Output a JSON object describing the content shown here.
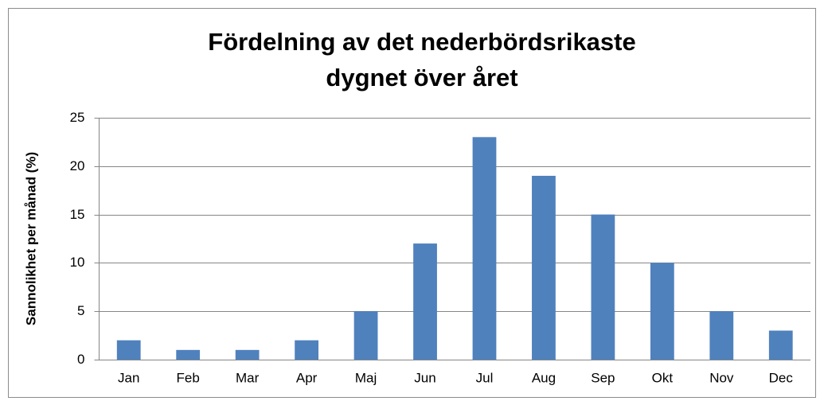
{
  "chart_data": {
    "type": "bar",
    "title": [
      "Fördelning av det nederbördsrikaste",
      "dygnet över året"
    ],
    "y_label": "Sannolikhet per månad (%)",
    "categories": [
      "Jan",
      "Feb",
      "Mar",
      "Apr",
      "Maj",
      "Jun",
      "Jul",
      "Aug",
      "Sep",
      "Okt",
      "Nov",
      "Dec"
    ],
    "values": [
      2,
      1,
      1,
      2,
      5,
      12,
      23,
      19,
      15,
      10,
      5,
      3
    ],
    "color": "#4f81bd",
    "ylim": [
      0,
      25
    ],
    "yticks": [
      0,
      5,
      10,
      15,
      20,
      25
    ],
    "grid": true
  }
}
